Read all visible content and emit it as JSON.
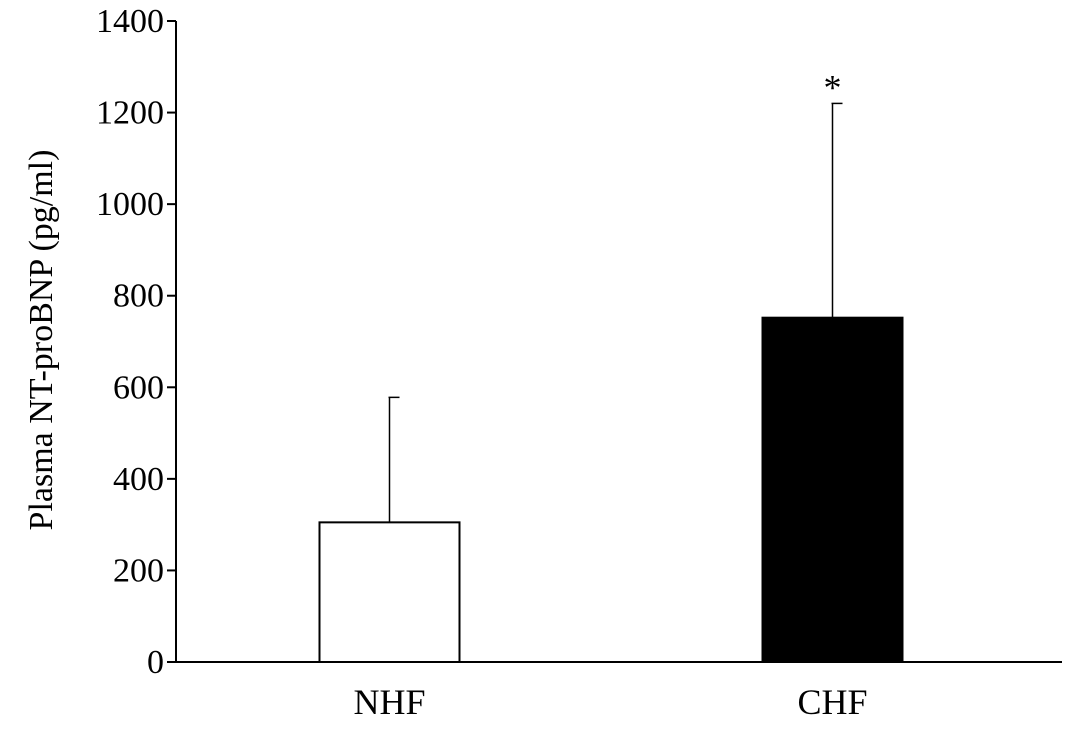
{
  "chart_data": {
    "type": "bar",
    "title": "",
    "xlabel": "",
    "ylabel": "Plasma NT-proBNP (pg/ml)",
    "categories": [
      "NHF",
      "CHF"
    ],
    "values": [
      305,
      752
    ],
    "error_upper": [
      578,
      1220
    ],
    "bar_colors": [
      "#ffffff",
      "#000000"
    ],
    "ylim": [
      0,
      1400
    ],
    "yticks": [
      0,
      200,
      400,
      600,
      800,
      1000,
      1200,
      1400
    ],
    "yticklabels": [
      "0",
      "200",
      "400",
      "600",
      "800",
      "1000",
      "1200",
      "1400"
    ],
    "annotations": [
      {
        "category": "CHF",
        "text": "*"
      }
    ],
    "grid": false,
    "legend": "none"
  }
}
